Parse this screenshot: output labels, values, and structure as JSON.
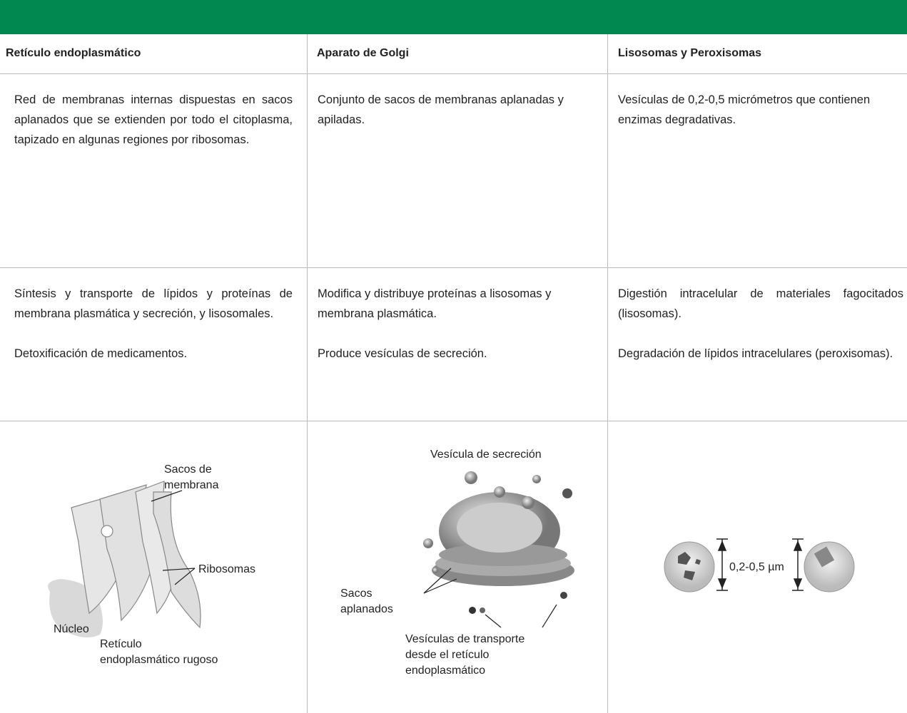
{
  "table": {
    "headers": [
      "Retículo endoplasmático",
      "Aparato de Golgi",
      "Lisosomas y Peroxisomas"
    ],
    "rows": [
      [
        [
          "Red de membranas internas dispuestas en sacos aplanados que se extienden por todo el citoplasma, tapizado en algunas regiones por ribosomas."
        ],
        [
          "Conjunto de sacos de membranas aplanadas y apiladas."
        ],
        [
          "Vesículas de 0,2-0,5 micrómetros que contienen enzimas degradativas."
        ]
      ],
      [
        [
          "Síntesis y transporte de lípidos y proteínas de membrana plasmática y secreción, y lisosomales.",
          "Detoxificación de medicamentos."
        ],
        [
          "Modifica y distribuye proteínas a lisosomas y membrana plasmática.",
          "Produce vesículas de secreción."
        ],
        [
          "Digestión intracelular de materiales fagocitados (lisosomas).",
          "Degradación de lípidos intracelulares (peroxisomas)."
        ]
      ]
    ]
  },
  "illustrations": [
    {
      "labels": [
        "Sacos de\nmembrana",
        "Ribosomas",
        "Núcleo",
        "Retículo\nendoplasmático rugoso"
      ]
    },
    {
      "labels": [
        "Vesícula de secreción",
        "Sacos\naplanados",
        "Vesículas de transporte\ndesde el retículo\nendoplasmático"
      ]
    },
    {
      "labels": [
        "0,2-0,5 µm"
      ]
    }
  ]
}
